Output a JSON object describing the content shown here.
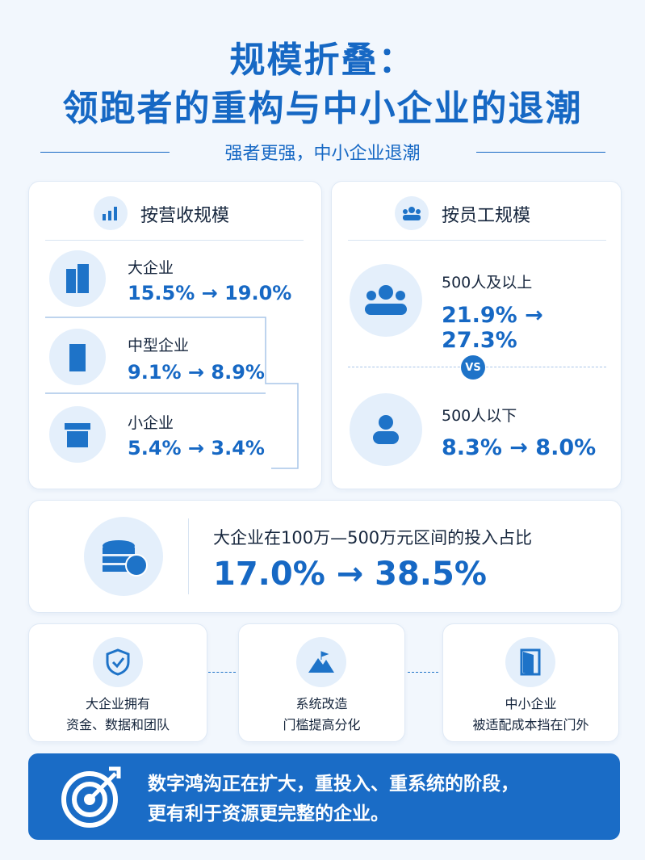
{
  "header": {
    "title_line1": "规模折叠：",
    "title_line2": "领跑者的重构与中小企业的退潮",
    "subtitle": "强者更强，中小企业退潮"
  },
  "revenue": {
    "heading": "按营收规模",
    "items": [
      {
        "label": "大企业",
        "change": "15.5% → 19.0%"
      },
      {
        "label": "中型企业",
        "change": "9.1% → 8.9%"
      },
      {
        "label": "小企业",
        "change": "5.4% → 3.4%"
      }
    ]
  },
  "employees": {
    "heading": "按员工规模",
    "items": [
      {
        "label": "500人及以上",
        "change": "21.9% → 27.3%"
      },
      {
        "label": "500人以下",
        "change": "8.3% → 8.0%"
      }
    ],
    "vs": "VS"
  },
  "investment": {
    "label": "大企业在100万—500万元区间的投入占比",
    "change": "17.0% → 38.5%"
  },
  "flow": [
    {
      "lines": [
        "大企业拥有",
        "资金、数据和团队"
      ]
    },
    {
      "lines": [
        "系统改造",
        "门槛提高分化"
      ]
    },
    {
      "lines": [
        "中小企业",
        "被适配成本挡在门外"
      ]
    }
  ],
  "conclusion": {
    "lines": [
      "数字鸿沟正在扩大，重投入、重系统的阶段，",
      "更有利于资源更完整的企业。"
    ]
  }
}
